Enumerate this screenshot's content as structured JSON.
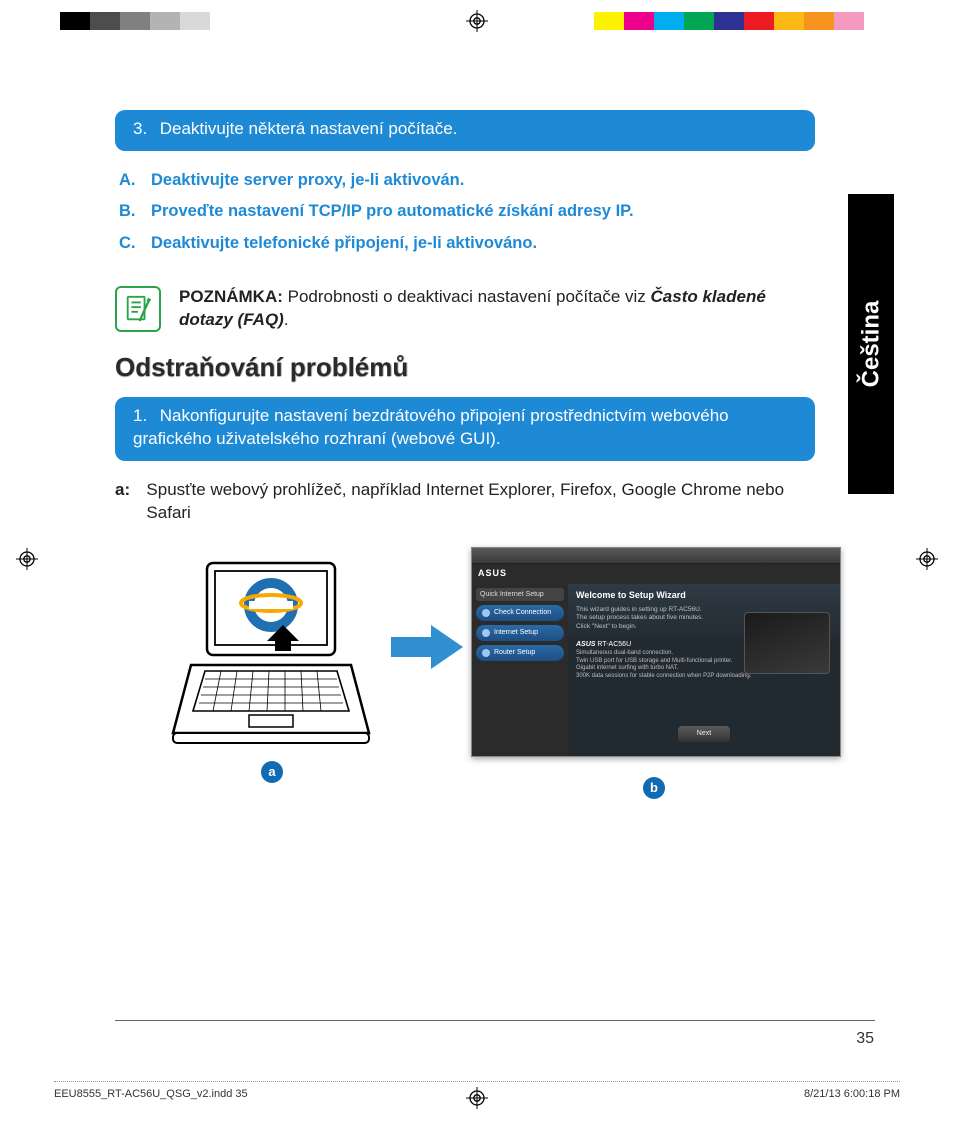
{
  "reg_colors_left": [
    "#000000",
    "#4d4d4d",
    "#808080",
    "#b3b3b3",
    "#d9d9d9",
    "#ffffff",
    "#ffffff",
    "#ffffff",
    "#ffffff",
    "#ffffff"
  ],
  "reg_colors_right": [
    "#fff200",
    "#ec008c",
    "#00aeef",
    "#00a651",
    "#2e3192",
    "#ed1c24",
    "#fdb913",
    "#f7941d",
    "#f49ac1",
    "#ffffff"
  ],
  "bluebar1": {
    "num": "3.",
    "text": "Deaktivujte některá nastavení počítače."
  },
  "sublist": [
    {
      "lbl": "A.",
      "text": "Deaktivujte server proxy, je-li aktivován."
    },
    {
      "lbl": "B.",
      "text": "Proveďte nastavení TCP/IP pro automatické získání adresy IP."
    },
    {
      "lbl": "C.",
      "text": "Deaktivujte telefonické připojení, je-li aktivováno."
    }
  ],
  "note": {
    "label": "POZNÁMKA:",
    "text_pre": "Podrobnosti o deaktivaci nastavení počítače viz ",
    "text_em": "Často kladené dotazy (FAQ)",
    "text_post": "."
  },
  "heading": "Odstraňování problémů",
  "bluebar2": {
    "num": "1.",
    "text": "Nakonfigurujte nastavení bezdrátového připojení prostřednictvím webového grafického uživatelského rozhraní (webové GUI)."
  },
  "step_a": {
    "lbl": "a:",
    "text": "Spusťte webový prohlížeč, například Internet Explorer, Firefox, Google Chrome nebo Safari"
  },
  "router_ui": {
    "brand": "ASUS",
    "side_hdr": "Quick Internet Setup",
    "side_items": [
      "Check Connection",
      "Internet Setup",
      "Router Setup"
    ],
    "wizard_title": "Welcome to Setup Wizard",
    "wizard_lines": [
      "This wizard guides in setting up RT-AC56U.",
      "The setup process takes about five minutes.",
      "Click \"Next\" to begin."
    ],
    "model_brand": "ASUS",
    "model": "RT-AC56U",
    "features": [
      "Simultaneous dual-band connection.",
      "Twin USB port for USB storage and Multi-functional printer.",
      "Gigabit internet surfing with turbo NAT.",
      "300K data sessions for stable connection when P2P downloading."
    ],
    "next": "Next"
  },
  "badges": {
    "a": "a",
    "b": "b"
  },
  "sidetab": "Čeština",
  "page_number": "35",
  "footer": {
    "left": "EEU8555_RT-AC56U_QSG_v2.indd   35",
    "right": "8/21/13   6:00:18 PM"
  },
  "colors": {
    "blue": "#1e8ad6",
    "badge": "#0f6bb3",
    "note_border": "#2aa34a",
    "arrow": "#2f8fd1",
    "ie_blue": "#1f6fb2"
  }
}
